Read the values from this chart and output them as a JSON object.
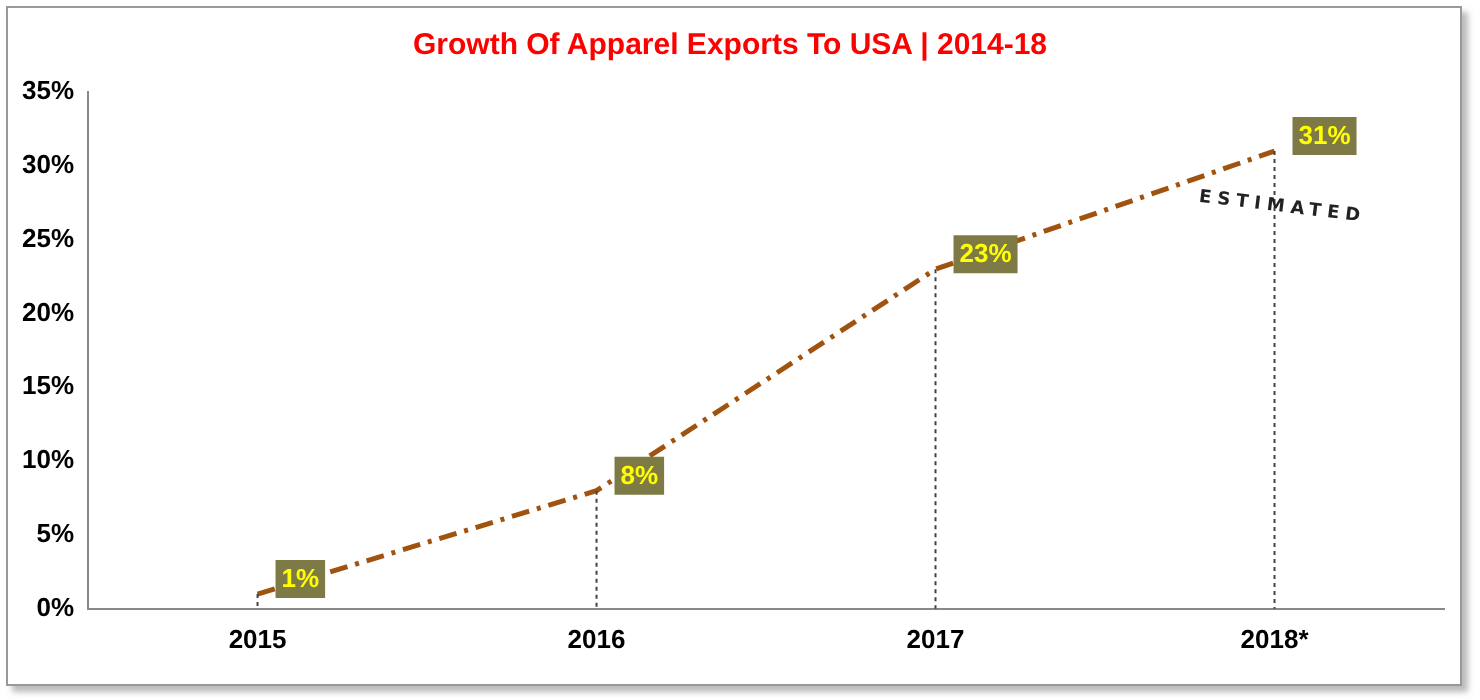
{
  "chart_data": {
    "type": "line",
    "title": "Growth Of Apparel Exports To USA | 2014-18",
    "categories": [
      "2015",
      "2016",
      "2017",
      "2018*"
    ],
    "series": [
      {
        "color": "#a0520f",
        "values": [
          1,
          8,
          23,
          31
        ],
        "value_labels": [
          "1%",
          "8%",
          "23%",
          "31%"
        ]
      }
    ],
    "ylim": [
      0,
      35
    ],
    "yticks": [
      {
        "value": 0,
        "label": "0%"
      },
      {
        "value": 5,
        "label": "5%"
      },
      {
        "value": 10,
        "label": "10%"
      },
      {
        "value": 15,
        "label": "15%"
      },
      {
        "value": 20,
        "label": "20%"
      },
      {
        "value": 25,
        "label": "25%"
      },
      {
        "value": 30,
        "label": "30%"
      },
      {
        "value": 35,
        "label": "35%"
      }
    ],
    "annotations": [
      "ESTIMATED"
    ],
    "grid": "x",
    "legend": false,
    "line_style": "dashed"
  }
}
